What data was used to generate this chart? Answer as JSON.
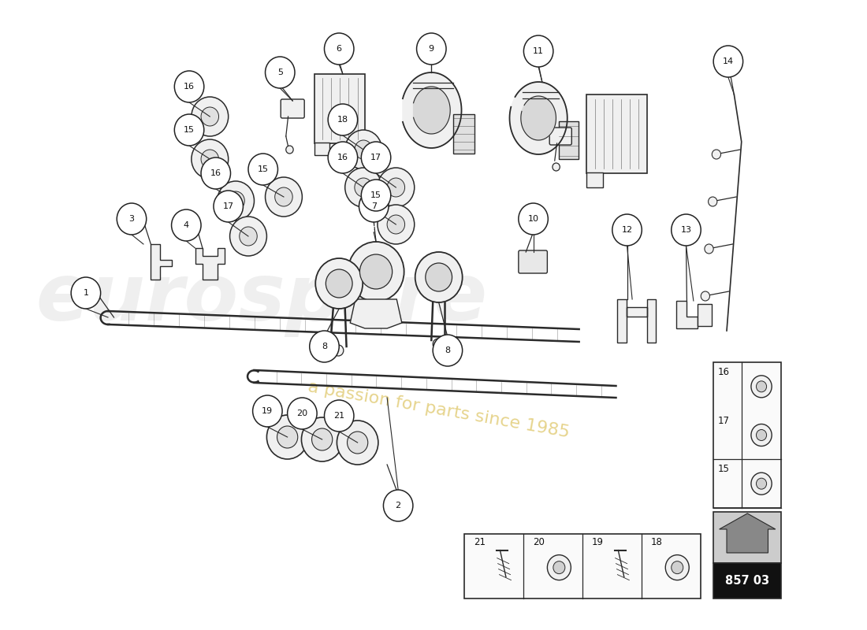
{
  "bg_color": "#ffffff",
  "line_color": "#2a2a2a",
  "light_fill": "#f0f0f0",
  "mid_fill": "#d8d8d8",
  "dark_fill": "#888888",
  "watermark1": "eurospare",
  "watermark2": "a passion for parts since 1985",
  "part_number": "857 03",
  "part_number_bg": "#111111",
  "part_number_fg": "#ffffff",
  "callout_bg": "#ffffff",
  "callout_edge": "#222222",
  "text_color": "#111111"
}
